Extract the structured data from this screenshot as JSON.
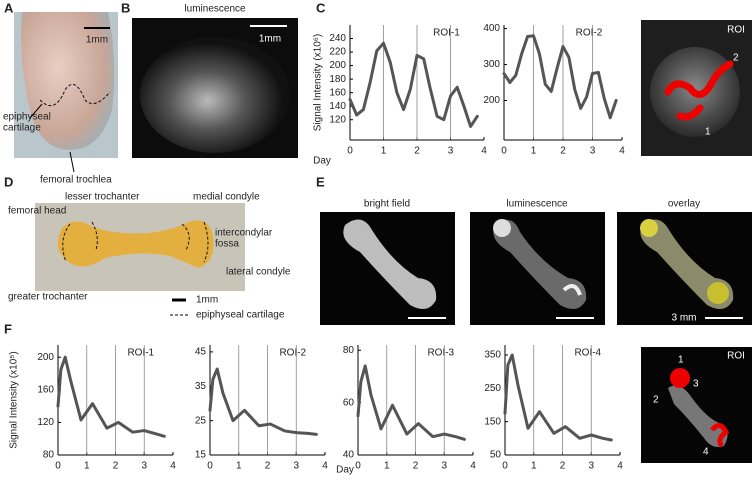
{
  "figure": {
    "A": {
      "label": "A",
      "scale_bar": "1mm",
      "labels": [
        "epiphyseal",
        "cartilage",
        "femoral trochlea"
      ]
    },
    "B": {
      "label": "B",
      "title": "luminescence",
      "scale_bar": "1mm"
    },
    "C": {
      "label": "C",
      "roi_image": {
        "title": "ROI",
        "markers": [
          "1",
          "2"
        ]
      }
    },
    "D": {
      "label": "D",
      "labels": [
        "lesser trochanter",
        "medial condyle",
        "femoral head",
        "intercondylar",
        "fossa",
        "lateral condyle",
        "greater trochanter"
      ],
      "legend": [
        "1mm",
        "epiphyseal cartilage"
      ]
    },
    "E": {
      "label": "E",
      "titles": [
        "bright field",
        "luminescence",
        "overlay"
      ],
      "scale_bar": "3 mm"
    },
    "F": {
      "label": "F",
      "roi_image": {
        "title": "ROI",
        "markers": [
          "1",
          "2",
          "3",
          "4"
        ]
      }
    }
  },
  "chart_data": [
    {
      "type": "line",
      "title": "ROI-1",
      "ylabel": "Signal Intensity (x10⁶)",
      "xlabel": "Day",
      "xlim": [
        0,
        4
      ],
      "xticks": [
        0,
        1,
        2,
        3,
        4
      ],
      "ylim": [
        90,
        260
      ],
      "yticks": [
        120,
        140,
        160,
        180,
        200,
        220,
        240
      ],
      "grid": true,
      "series": [
        {
          "color": "#555555",
          "x": [
            0,
            0.2,
            0.4,
            0.6,
            0.8,
            1.0,
            1.2,
            1.4,
            1.6,
            1.8,
            2.0,
            2.2,
            2.4,
            2.6,
            2.8,
            3.0,
            3.2,
            3.4,
            3.6,
            3.8
          ],
          "values": [
            150,
            127,
            135,
            175,
            222,
            233,
            205,
            160,
            135,
            165,
            215,
            210,
            165,
            125,
            120,
            155,
            168,
            140,
            110,
            125
          ]
        }
      ]
    },
    {
      "type": "line",
      "title": "ROI-2",
      "xlim": [
        0,
        4
      ],
      "xticks": [
        0,
        1,
        2,
        3,
        4
      ],
      "ylim": [
        90,
        410
      ],
      "yticks": [
        200,
        300,
        400
      ],
      "grid": true,
      "series": [
        {
          "color": "#555555",
          "x": [
            0,
            0.2,
            0.4,
            0.6,
            0.8,
            1.0,
            1.2,
            1.4,
            1.6,
            1.8,
            2.0,
            2.2,
            2.4,
            2.6,
            2.8,
            3.0,
            3.2,
            3.4,
            3.6,
            3.8
          ],
          "values": [
            275,
            250,
            270,
            330,
            378,
            380,
            330,
            245,
            225,
            290,
            350,
            320,
            230,
            178,
            210,
            275,
            278,
            205,
            152,
            200
          ]
        }
      ]
    },
    {
      "type": "line",
      "title": "ROI-1",
      "ylabel": "Signal Intensity (x10⁵)",
      "xlim": [
        0,
        4
      ],
      "xticks": [
        0,
        1,
        2,
        3,
        4
      ],
      "ylim": [
        80,
        215
      ],
      "yticks": [
        80,
        120,
        160,
        200
      ],
      "grid": true,
      "series": [
        {
          "color": "#555555",
          "x": [
            0,
            0.1,
            0.25,
            0.45,
            0.8,
            1.2,
            1.7,
            2.1,
            2.6,
            3.0,
            3.4,
            3.7
          ],
          "values": [
            140,
            185,
            200,
            170,
            123,
            143,
            113,
            120,
            108,
            110,
            106,
            103
          ]
        }
      ]
    },
    {
      "type": "line",
      "title": "ROI-2",
      "xlabel": "Day",
      "xlim": [
        0,
        4
      ],
      "xticks": [
        0,
        1,
        2,
        3,
        4
      ],
      "ylim": [
        15,
        47
      ],
      "yticks": [
        15,
        25,
        35,
        45
      ],
      "grid": true,
      "series": [
        {
          "color": "#555555",
          "x": [
            0,
            0.1,
            0.25,
            0.45,
            0.8,
            1.2,
            1.7,
            2.1,
            2.6,
            3.0,
            3.4,
            3.7
          ],
          "values": [
            28,
            37,
            40,
            33,
            25,
            28,
            23.5,
            24,
            22,
            21.5,
            21.3,
            21
          ]
        }
      ]
    },
    {
      "type": "line",
      "title": "ROI-3",
      "xlim": [
        0,
        4
      ],
      "xticks": [
        0,
        1,
        2,
        3,
        4
      ],
      "ylim": [
        40,
        82
      ],
      "yticks": [
        40,
        60,
        80
      ],
      "grid": true,
      "series": [
        {
          "color": "#555555",
          "x": [
            0,
            0.1,
            0.25,
            0.45,
            0.8,
            1.2,
            1.7,
            2.1,
            2.6,
            3.0,
            3.4,
            3.7
          ],
          "values": [
            55,
            68,
            74,
            63,
            50,
            59,
            48,
            52,
            47,
            48,
            47,
            46
          ]
        }
      ]
    },
    {
      "type": "line",
      "title": "ROI-4",
      "xlim": [
        0,
        4
      ],
      "xticks": [
        0,
        1,
        2,
        3,
        4
      ],
      "ylim": [
        50,
        380
      ],
      "yticks": [
        50,
        150,
        250,
        350
      ],
      "grid": true,
      "series": [
        {
          "color": "#555555",
          "x": [
            0,
            0.1,
            0.25,
            0.45,
            0.8,
            1.2,
            1.7,
            2.1,
            2.6,
            3.0,
            3.4,
            3.7
          ],
          "values": [
            175,
            320,
            350,
            260,
            130,
            180,
            115,
            135,
            100,
            110,
            100,
            95
          ]
        }
      ]
    }
  ]
}
